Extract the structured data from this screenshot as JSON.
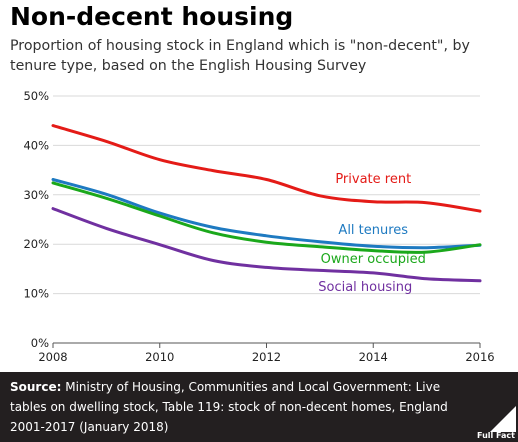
{
  "chart_data": {
    "type": "line",
    "title": "Non-decent housing",
    "subtitle": "Proportion of housing stock in England which is \"non-decent\", by tenure type, based on the English Housing Survey",
    "x": [
      2008,
      2009,
      2010,
      2011,
      2012,
      2013,
      2014,
      2015,
      2016
    ],
    "xticks": [
      2008,
      2010,
      2012,
      2014,
      2016
    ],
    "xlim": [
      2008,
      2016
    ],
    "ylim": [
      0,
      50
    ],
    "yticks": [
      0,
      10,
      20,
      30,
      40,
      50
    ],
    "ytick_labels": [
      "0%",
      "10%",
      "20%",
      "30%",
      "40%",
      "50%"
    ],
    "grid": "horizontal",
    "series": [
      {
        "name": "Private rent",
        "color": "#e41b17",
        "values": [
          44.0,
          40.8,
          37.1,
          34.9,
          33.1,
          29.8,
          28.6,
          28.4,
          26.7
        ]
      },
      {
        "name": "All tenures",
        "color": "#1e7ac1",
        "values": [
          33.1,
          30.1,
          26.3,
          23.4,
          21.7,
          20.5,
          19.6,
          19.3,
          19.8
        ]
      },
      {
        "name": "Owner occupied",
        "color": "#1ba81b",
        "values": [
          32.4,
          29.3,
          25.7,
          22.3,
          20.4,
          19.5,
          18.7,
          18.4,
          19.9
        ]
      },
      {
        "name": "Social housing",
        "color": "#7030a0",
        "values": [
          27.2,
          23.2,
          19.9,
          16.7,
          15.3,
          14.7,
          14.2,
          13.0,
          12.6
        ]
      }
    ]
  },
  "footer": {
    "source_label": "Source:",
    "source_text": "Ministry of Housing, Communities and Local Government: Live tables on dwelling stock, Table 119: stock of non-decent homes, England 2001-2017 (January 2018)",
    "logo_text": "Full Fact"
  }
}
